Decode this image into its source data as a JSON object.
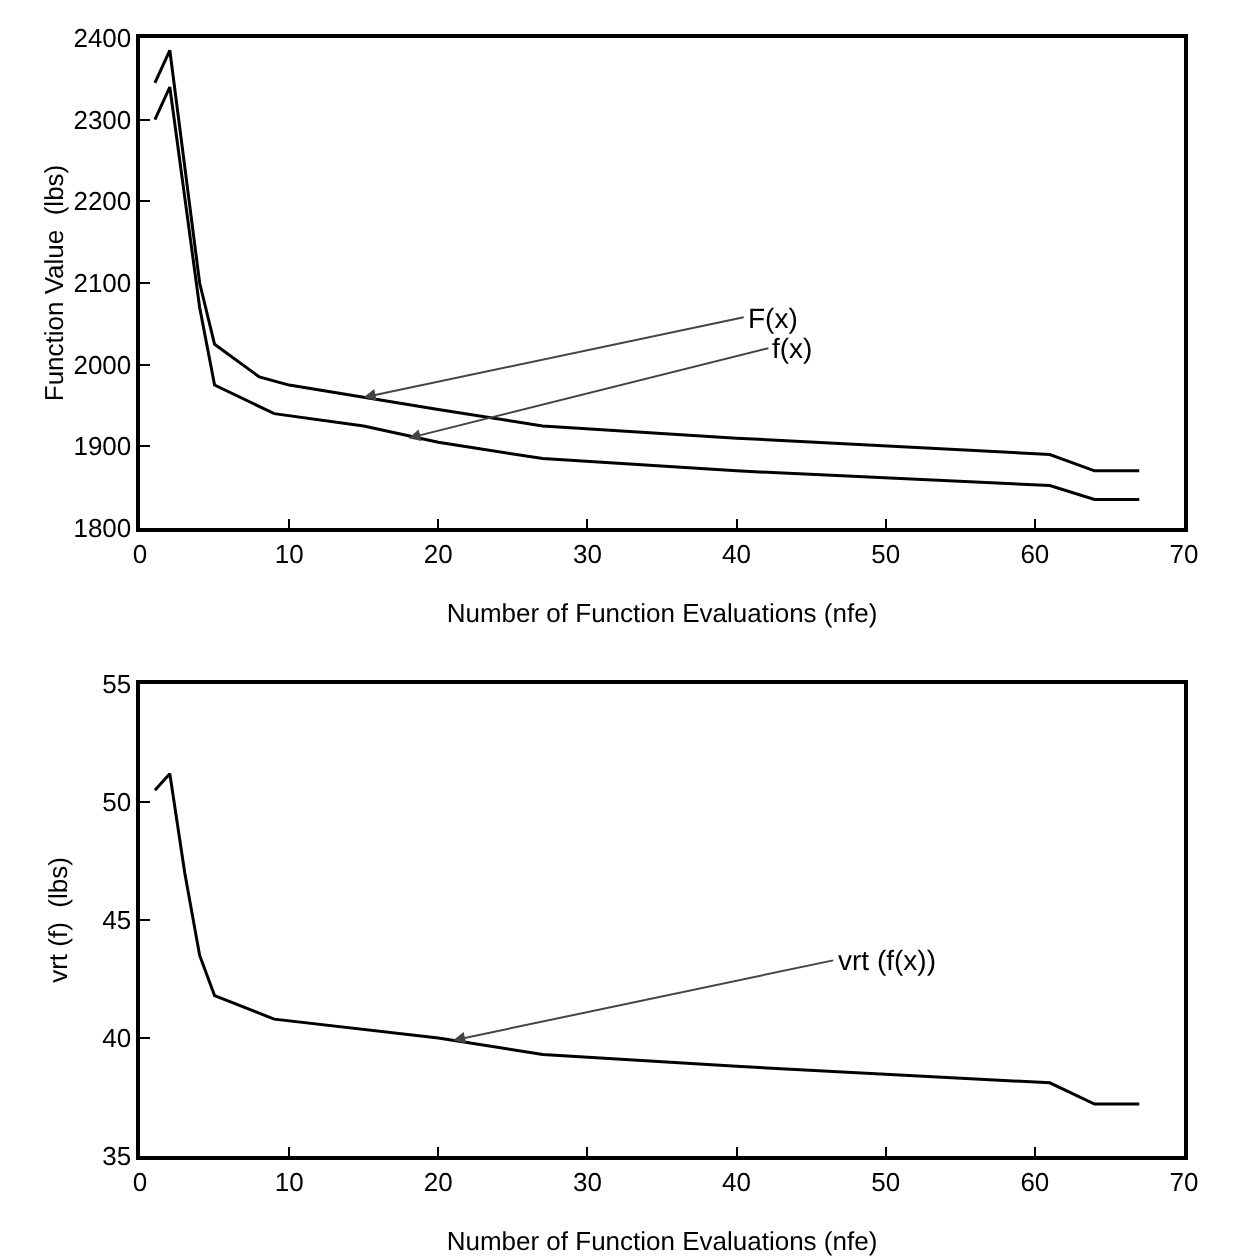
{
  "chart_data": [
    {
      "type": "line",
      "xlabel": "Number of Function Evaluations (nfe)",
      "ylabel": "Function Value  (lbs)",
      "xlim": [
        0,
        70
      ],
      "xticks": [
        0,
        10,
        20,
        30,
        40,
        50,
        60,
        70
      ],
      "ylim": [
        1800,
        2400
      ],
      "yticks": [
        1800,
        1900,
        2000,
        2100,
        2200,
        2300,
        2400
      ],
      "grid": false,
      "series": [
        {
          "color": "#000000",
          "x": [
            1,
            2,
            4,
            5,
            8,
            10,
            15,
            20,
            27,
            40,
            61,
            64,
            67
          ],
          "values": [
            2345,
            2385,
            2100,
            2025,
            1985,
            1975,
            1960,
            1945,
            1925,
            1910,
            1890,
            1870,
            1870
          ]
        },
        {
          "color": "#000000",
          "x": [
            1,
            2,
            4,
            5,
            9,
            15,
            20,
            27,
            40,
            61,
            64,
            67
          ],
          "values": [
            2300,
            2340,
            2070,
            1975,
            1940,
            1925,
            1905,
            1885,
            1870,
            1852,
            1835,
            1835
          ]
        }
      ],
      "annotations": [
        {
          "text": "F(x)",
          "x": 15,
          "y": 1960
        },
        {
          "text": "f(x)",
          "x": 18,
          "y": 1910
        }
      ]
    },
    {
      "type": "line",
      "xlabel": "Number of Function Evaluations (nfe)",
      "ylabel": "vrt (f)  (lbs)",
      "xlim": [
        0,
        70
      ],
      "xticks": [
        0,
        10,
        20,
        30,
        40,
        50,
        60,
        70
      ],
      "ylim": [
        35,
        55
      ],
      "yticks": [
        35,
        40,
        45,
        50,
        55
      ],
      "grid": false,
      "series": [
        {
          "color": "#000000",
          "x": [
            1,
            2,
            3,
            4,
            5,
            9,
            20,
            27,
            40,
            61,
            64,
            67
          ],
          "values": [
            50.5,
            51.2,
            47,
            43.5,
            41.8,
            40.8,
            40,
            39.3,
            38.8,
            38.1,
            37.2,
            37.2
          ]
        }
      ],
      "annotations": [
        {
          "text": "vrt (f(x))",
          "x": 21,
          "y": 39.9
        }
      ]
    }
  ]
}
